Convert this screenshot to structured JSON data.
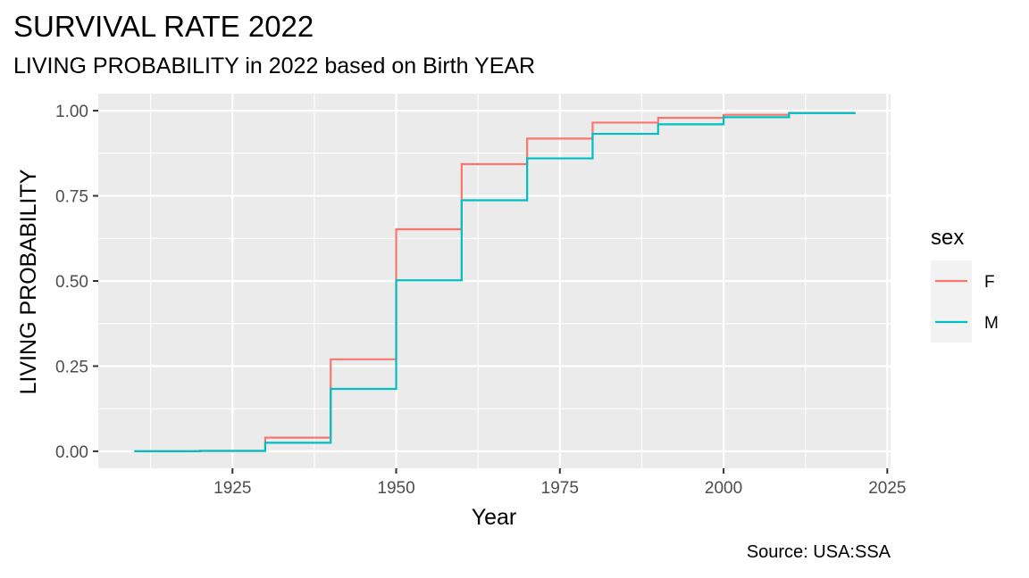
{
  "title": "SURVIVAL RATE 2022",
  "subtitle": "LIVING PROBABILITY in 2022 based on Birth YEAR",
  "caption": "Source: USA:SSA",
  "chart_data": {
    "type": "line",
    "step": true,
    "xlabel": "Year",
    "ylabel": "LIVING PROBABILITY",
    "xlim": [
      1904.5,
      2025.5
    ],
    "ylim": [
      -0.05,
      1.05
    ],
    "x_ticks": [
      1925,
      1950,
      1975,
      2000,
      2025
    ],
    "y_ticks": [
      0.0,
      0.25,
      0.5,
      0.75,
      1.0
    ],
    "y_tick_labels": [
      "0.00",
      "0.25",
      "0.50",
      "0.75",
      "1.00"
    ],
    "grid": true,
    "legend": {
      "title": "sex",
      "position": "right"
    },
    "x": [
      1910,
      1920,
      1930,
      1940,
      1950,
      1960,
      1970,
      1980,
      1990,
      2000,
      2010,
      2020
    ],
    "series": [
      {
        "name": "F",
        "color": "#F8766D",
        "values": [
          0.0,
          0.001,
          0.04,
          0.27,
          0.652,
          0.843,
          0.918,
          0.965,
          0.979,
          0.988,
          0.993,
          0.996
        ]
      },
      {
        "name": "M",
        "color": "#00BFC4",
        "values": [
          0.0,
          0.001,
          0.025,
          0.183,
          0.502,
          0.737,
          0.86,
          0.932,
          0.96,
          0.981,
          0.993,
          0.996
        ]
      }
    ]
  }
}
